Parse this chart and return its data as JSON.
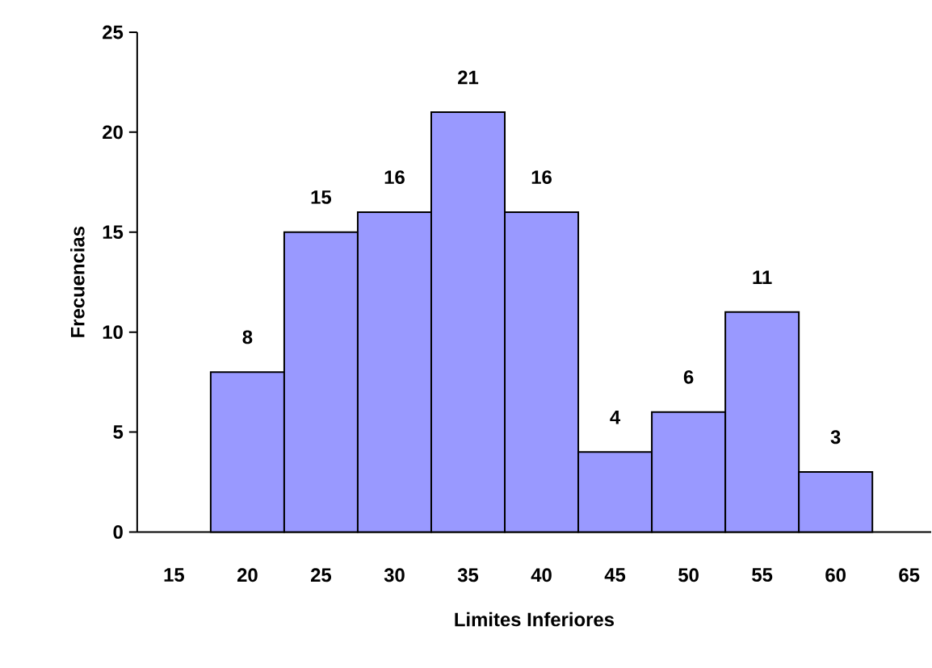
{
  "chart_data": {
    "type": "bar",
    "xlabel": "Limites Inferiores",
    "ylabel": "Frecuencias",
    "categories": [
      "15",
      "20",
      "25",
      "30",
      "35",
      "40",
      "45",
      "50",
      "55",
      "60",
      "65"
    ],
    "values": [
      null,
      8,
      15,
      16,
      21,
      16,
      4,
      6,
      11,
      3,
      null
    ],
    "color": "#9999ff",
    "ylim": [
      0,
      25
    ],
    "yticks": [
      0,
      5,
      10,
      15,
      20,
      25
    ],
    "data_labels": true
  }
}
